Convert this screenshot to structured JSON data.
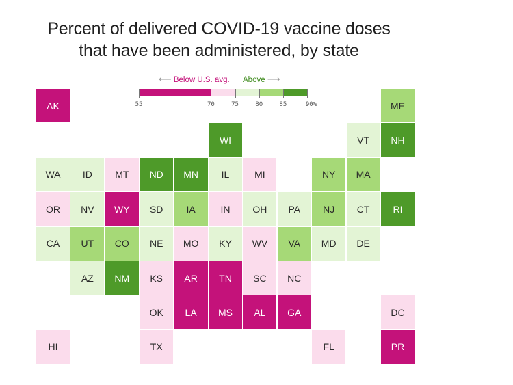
{
  "title_lines": [
    "Percent of delivered COVID-19 vaccine doses",
    "that have been administered, by state"
  ],
  "legend": {
    "below_label": "Below U.S. avg.",
    "above_label": "Above",
    "left_arrow": "⟵",
    "right_arrow": "⟶",
    "ticks": [
      "55",
      "70",
      "75",
      "80",
      "85",
      "90%"
    ],
    "tick_values": [
      55,
      70,
      75,
      80,
      85,
      90
    ],
    "bins": [
      {
        "from": 55,
        "to": 70,
        "color": "#c4127a"
      },
      {
        "from": 70,
        "to": 75,
        "color": "#fbdcec"
      },
      {
        "from": 75,
        "to": 80,
        "color": "#e3f4d5"
      },
      {
        "from": 80,
        "to": 85,
        "color": "#a6d977"
      },
      {
        "from": 85,
        "to": 90,
        "color": "#4e9a29"
      }
    ]
  },
  "chart_data": {
    "type": "heatmap",
    "title": "Percent of delivered COVID-19 vaccine doses that have been administered, by state",
    "legend_note": "Below U.S. avg. / Above",
    "bin_labels": [
      "55-70",
      "70-75",
      "75-80",
      "80-85",
      "85-90"
    ],
    "states": [
      {
        "abbr": "AK",
        "col": 0,
        "row": 0,
        "bin": 0
      },
      {
        "abbr": "ME",
        "col": 10,
        "row": 0,
        "bin": 3
      },
      {
        "abbr": "WI",
        "col": 5,
        "row": 1,
        "bin": 4
      },
      {
        "abbr": "VT",
        "col": 9,
        "row": 1,
        "bin": 2
      },
      {
        "abbr": "NH",
        "col": 10,
        "row": 1,
        "bin": 4
      },
      {
        "abbr": "WA",
        "col": 0,
        "row": 2,
        "bin": 2
      },
      {
        "abbr": "ID",
        "col": 1,
        "row": 2,
        "bin": 2
      },
      {
        "abbr": "MT",
        "col": 2,
        "row": 2,
        "bin": 1
      },
      {
        "abbr": "ND",
        "col": 3,
        "row": 2,
        "bin": 4
      },
      {
        "abbr": "MN",
        "col": 4,
        "row": 2,
        "bin": 4
      },
      {
        "abbr": "IL",
        "col": 5,
        "row": 2,
        "bin": 2
      },
      {
        "abbr": "MI",
        "col": 6,
        "row": 2,
        "bin": 1
      },
      {
        "abbr": "NY",
        "col": 8,
        "row": 2,
        "bin": 3
      },
      {
        "abbr": "MA",
        "col": 9,
        "row": 2,
        "bin": 3
      },
      {
        "abbr": "OR",
        "col": 0,
        "row": 3,
        "bin": 1
      },
      {
        "abbr": "NV",
        "col": 1,
        "row": 3,
        "bin": 2
      },
      {
        "abbr": "WY",
        "col": 2,
        "row": 3,
        "bin": 0
      },
      {
        "abbr": "SD",
        "col": 3,
        "row": 3,
        "bin": 2
      },
      {
        "abbr": "IA",
        "col": 4,
        "row": 3,
        "bin": 3
      },
      {
        "abbr": "IN",
        "col": 5,
        "row": 3,
        "bin": 1
      },
      {
        "abbr": "OH",
        "col": 6,
        "row": 3,
        "bin": 2
      },
      {
        "abbr": "PA",
        "col": 7,
        "row": 3,
        "bin": 2
      },
      {
        "abbr": "NJ",
        "col": 8,
        "row": 3,
        "bin": 3
      },
      {
        "abbr": "CT",
        "col": 9,
        "row": 3,
        "bin": 2
      },
      {
        "abbr": "RI",
        "col": 10,
        "row": 3,
        "bin": 4
      },
      {
        "abbr": "CA",
        "col": 0,
        "row": 4,
        "bin": 2
      },
      {
        "abbr": "UT",
        "col": 1,
        "row": 4,
        "bin": 3
      },
      {
        "abbr": "CO",
        "col": 2,
        "row": 4,
        "bin": 3
      },
      {
        "abbr": "NE",
        "col": 3,
        "row": 4,
        "bin": 2
      },
      {
        "abbr": "MO",
        "col": 4,
        "row": 4,
        "bin": 1
      },
      {
        "abbr": "KY",
        "col": 5,
        "row": 4,
        "bin": 2
      },
      {
        "abbr": "WV",
        "col": 6,
        "row": 4,
        "bin": 1
      },
      {
        "abbr": "VA",
        "col": 7,
        "row": 4,
        "bin": 3
      },
      {
        "abbr": "MD",
        "col": 8,
        "row": 4,
        "bin": 2
      },
      {
        "abbr": "DE",
        "col": 9,
        "row": 4,
        "bin": 2
      },
      {
        "abbr": "AZ",
        "col": 1,
        "row": 5,
        "bin": 2
      },
      {
        "abbr": "NM",
        "col": 2,
        "row": 5,
        "bin": 4
      },
      {
        "abbr": "KS",
        "col": 3,
        "row": 5,
        "bin": 1
      },
      {
        "abbr": "AR",
        "col": 4,
        "row": 5,
        "bin": 0
      },
      {
        "abbr": "TN",
        "col": 5,
        "row": 5,
        "bin": 0
      },
      {
        "abbr": "SC",
        "col": 6,
        "row": 5,
        "bin": 1
      },
      {
        "abbr": "NC",
        "col": 7,
        "row": 5,
        "bin": 1
      },
      {
        "abbr": "OK",
        "col": 3,
        "row": 6,
        "bin": 1
      },
      {
        "abbr": "LA",
        "col": 4,
        "row": 6,
        "bin": 0
      },
      {
        "abbr": "MS",
        "col": 5,
        "row": 6,
        "bin": 0
      },
      {
        "abbr": "AL",
        "col": 6,
        "row": 6,
        "bin": 0
      },
      {
        "abbr": "GA",
        "col": 7,
        "row": 6,
        "bin": 0
      },
      {
        "abbr": "DC",
        "col": 10,
        "row": 6,
        "bin": 1
      },
      {
        "abbr": "HI",
        "col": 0,
        "row": 7,
        "bin": 1
      },
      {
        "abbr": "TX",
        "col": 3,
        "row": 7,
        "bin": 1
      },
      {
        "abbr": "FL",
        "col": 8,
        "row": 7,
        "bin": 1
      },
      {
        "abbr": "PR",
        "col": 10,
        "row": 7,
        "bin": 0
      }
    ]
  }
}
